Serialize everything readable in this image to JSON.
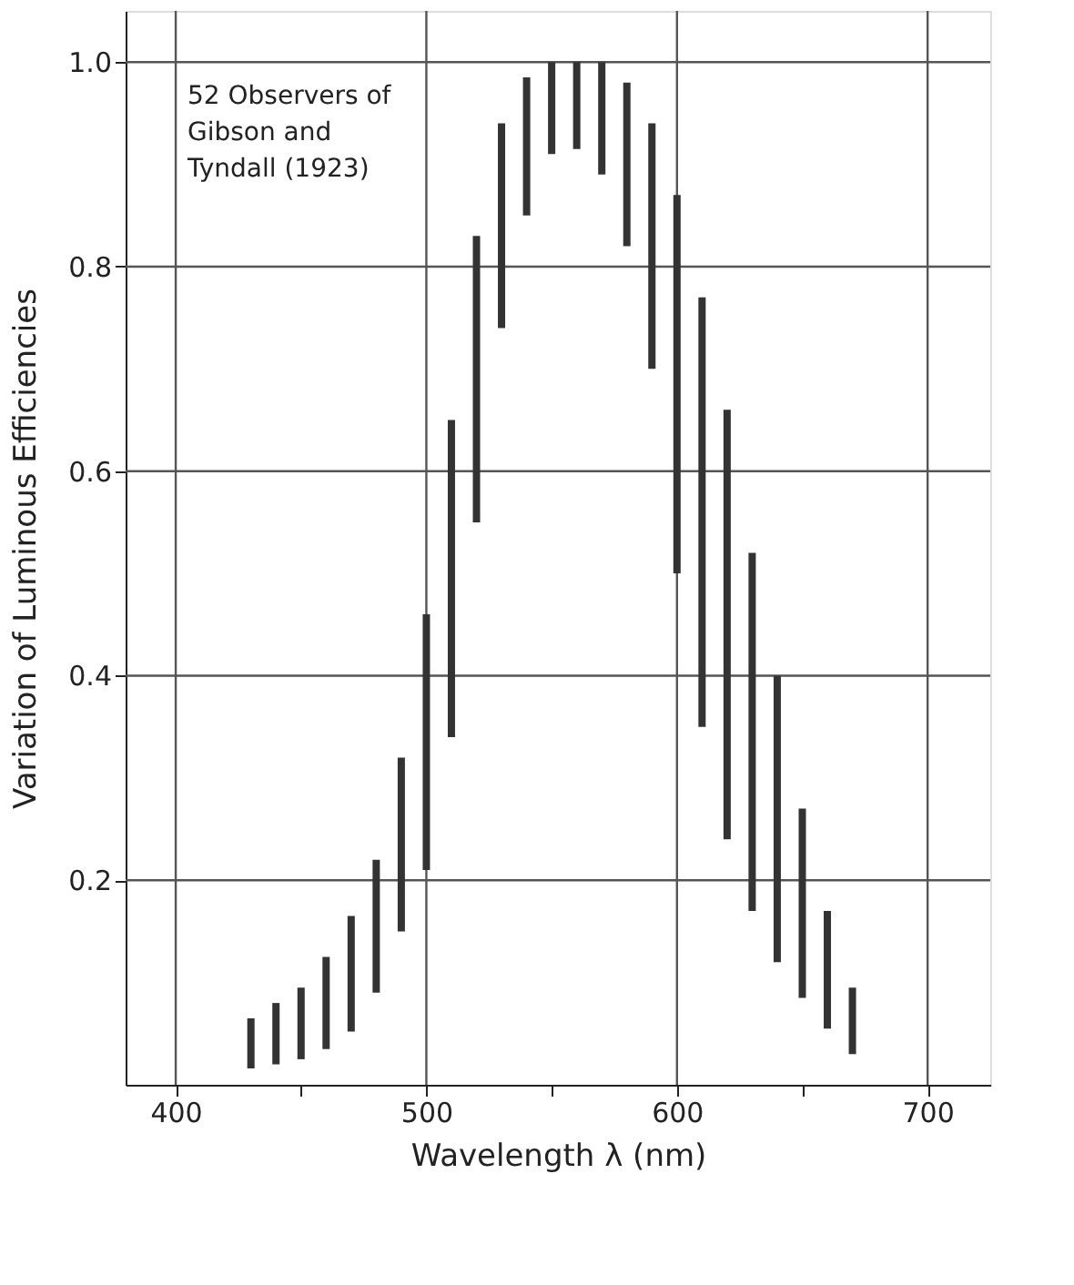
{
  "chart_data": {
    "type": "bar",
    "xlabel": "Wavelength λ (nm)",
    "ylabel": "Variation of Luminous Efficiencies",
    "annotations": [
      "52 Observers of\nGibson and\nTyndall (1923)"
    ],
    "x": [
      430,
      440,
      450,
      460,
      470,
      480,
      490,
      500,
      510,
      520,
      530,
      540,
      550,
      560,
      570,
      580,
      590,
      600,
      610,
      620,
      630,
      640,
      650,
      660,
      670
    ],
    "base": [
      0.016,
      0.02,
      0.025,
      0.035,
      0.052,
      0.09,
      0.15,
      0.21,
      0.34,
      0.55,
      0.74,
      0.85,
      0.91,
      0.915,
      0.89,
      0.82,
      0.7,
      0.5,
      0.35,
      0.24,
      0.17,
      0.12,
      0.085,
      0.055,
      0.03
    ],
    "values": [
      0.049,
      0.06,
      0.07,
      0.09,
      0.113,
      0.13,
      0.17,
      0.25,
      0.31,
      0.28,
      0.2,
      0.135,
      0.09,
      0.085,
      0.11,
      0.16,
      0.24,
      0.37,
      0.42,
      0.42,
      0.35,
      0.28,
      0.185,
      0.115,
      0.065
    ],
    "color": "#333333",
    "xlim": [
      380,
      725
    ],
    "xticks": [
      400,
      {
        "value": 450,
        "label": null
      },
      500,
      {
        "value": 550,
        "label": null
      },
      600,
      {
        "value": 650,
        "label": null
      },
      700
    ],
    "ylim": [
      0,
      1.05
    ],
    "yticks": [
      0.2,
      0.4,
      0.6,
      0.8,
      {
        "value": 1,
        "label": "1.0"
      }
    ],
    "grid": true
  }
}
